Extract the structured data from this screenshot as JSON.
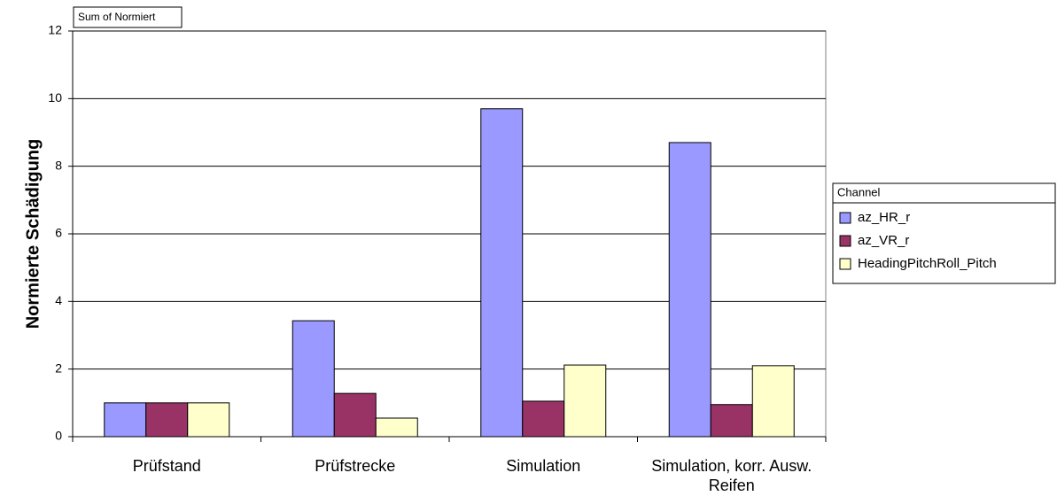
{
  "chart_data": {
    "type": "bar",
    "header_label": "Sum of Normiert",
    "y_label": "Normierte Schädigung",
    "categories": [
      "Prüfstand",
      "Prüfstrecke",
      "Simulation",
      "Simulation, korr. Ausw. Reifen"
    ],
    "series": [
      {
        "name": "az_HR_r",
        "color": "#9999ff",
        "values": [
          1.0,
          3.43,
          9.7,
          8.7
        ]
      },
      {
        "name": "az_VR_r",
        "color": "#993366",
        "values": [
          1.0,
          1.28,
          1.05,
          0.95
        ]
      },
      {
        "name": "HeadingPitchRoll_Pitch",
        "color": "#ffffcc",
        "values": [
          1.0,
          0.55,
          2.12,
          2.1
        ]
      }
    ],
    "legend_title": "Channel",
    "ylim": [
      0,
      12
    ],
    "yticks": [
      0,
      2,
      4,
      6,
      8,
      10,
      12
    ],
    "grid": true
  }
}
